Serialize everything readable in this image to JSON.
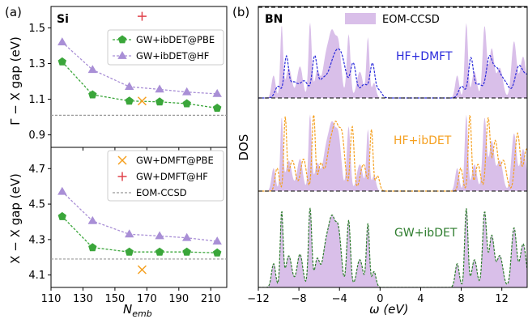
{
  "panel_labels": {
    "a": "(a)",
    "b": "(b)"
  },
  "chart_data": [
    {
      "type": "line",
      "panel": "(a) upper",
      "tag": "Si",
      "ylabel": "Γ − X gap (eV)",
      "xlim": [
        110,
        220
      ],
      "ylim": [
        0.83,
        1.62
      ],
      "yticks": [
        "0.9",
        "1.1",
        "1.3",
        "1.5"
      ],
      "series": [
        {
          "name": "GW+ibDET@PBE",
          "color": "#3aa63a",
          "marker": "pentagon",
          "x": [
            117,
            136,
            159,
            178,
            195,
            214
          ],
          "y": [
            1.31,
            1.125,
            1.09,
            1.085,
            1.075,
            1.05
          ]
        },
        {
          "name": "GW+ibDET@HF",
          "color": "#a98fd6",
          "marker": "triangle",
          "x": [
            117,
            136,
            159,
            178,
            195,
            214
          ],
          "y": [
            1.42,
            1.265,
            1.17,
            1.155,
            1.14,
            1.13
          ]
        }
      ],
      "points": [
        {
          "series": "GW+DMFT@PBE",
          "x": 167,
          "y": 1.09
        },
        {
          "series": "GW+DMFT@HF",
          "x": 167,
          "y": 1.565
        }
      ],
      "reference": {
        "name": "EOM-CCSD",
        "y": 1.01
      }
    },
    {
      "type": "line",
      "panel": "(a) lower",
      "xlabel": "N",
      "xlabel_sub": "emb",
      "ylabel": "X − X gap (eV)",
      "xlim": [
        110,
        220
      ],
      "ylim": [
        4.03,
        4.82
      ],
      "xticks": [
        "110",
        "130",
        "150",
        "170",
        "190",
        "210"
      ],
      "yticks": [
        "4.1",
        "4.3",
        "4.5",
        "4.7"
      ],
      "series": [
        {
          "name": "GW+ibDET@PBE",
          "color": "#3aa63a",
          "marker": "pentagon",
          "x": [
            117,
            136,
            159,
            178,
            195,
            214
          ],
          "y": [
            4.43,
            4.255,
            4.23,
            4.23,
            4.23,
            4.225
          ]
        },
        {
          "name": "GW+ibDET@HF",
          "color": "#a98fd6",
          "marker": "triangle",
          "x": [
            117,
            136,
            159,
            178,
            195,
            214
          ],
          "y": [
            4.57,
            4.405,
            4.33,
            4.32,
            4.31,
            4.29
          ]
        }
      ],
      "points": [
        {
          "series": "GW+DMFT@PBE",
          "x": 167,
          "y": 4.13
        },
        {
          "series": "GW+DMFT@HF",
          "x": 167,
          "y": 4.575
        }
      ],
      "reference": {
        "name": "EOM-CCSD",
        "y": 4.19
      }
    },
    {
      "type": "area",
      "panel": "(b)",
      "tag": "BN",
      "xlabel": "ω (eV)",
      "ylabel": "DOS",
      "xlim": [
        -12,
        14.5
      ],
      "xticks": [
        "−12",
        "−8",
        "−4",
        "0",
        "4",
        "8",
        "12"
      ],
      "reference": {
        "name": "EOM-CCSD",
        "color": "#d9bfe9",
        "peaks": [
          {
            "x": -10.5,
            "h": 0.3,
            "w": 0.2
          },
          {
            "x": -9.7,
            "h": 0.95,
            "w": 0.14
          },
          {
            "x": -9.0,
            "h": 0.4,
            "w": 0.3
          },
          {
            "x": -7.9,
            "h": 0.42,
            "w": 0.28
          },
          {
            "x": -6.9,
            "h": 1.0,
            "w": 0.16
          },
          {
            "x": -6.2,
            "h": 0.35,
            "w": 0.25
          },
          {
            "x": -5.3,
            "h": 0.55,
            "w": 0.35
          },
          {
            "x": -4.7,
            "h": 0.72,
            "w": 0.3
          },
          {
            "x": -4.1,
            "h": 0.68,
            "w": 0.28
          },
          {
            "x": -3.1,
            "h": 0.85,
            "w": 0.18
          },
          {
            "x": -2.0,
            "h": 0.35,
            "w": 0.3
          },
          {
            "x": -1.2,
            "h": 0.8,
            "w": 0.15
          },
          {
            "x": -0.6,
            "h": 0.2,
            "w": 0.2
          },
          {
            "x": 7.6,
            "h": 0.3,
            "w": 0.2
          },
          {
            "x": 8.5,
            "h": 1.0,
            "w": 0.16
          },
          {
            "x": 9.3,
            "h": 0.35,
            "w": 0.25
          },
          {
            "x": 10.3,
            "h": 0.95,
            "w": 0.2
          },
          {
            "x": 11.0,
            "h": 0.65,
            "w": 0.25
          },
          {
            "x": 11.8,
            "h": 0.4,
            "w": 0.3
          },
          {
            "x": 13.2,
            "h": 0.75,
            "w": 0.25
          },
          {
            "x": 14.1,
            "h": 0.55,
            "w": 0.3
          }
        ]
      },
      "series": [
        {
          "name": "HF+DMFT",
          "color": "#2a2adb",
          "shift": 0.45,
          "broad": 1.5,
          "damp": 0.72
        },
        {
          "name": "HF+ibDET",
          "color": "#f5a020",
          "shift": 0.35,
          "broad": 1.0,
          "damp": 0.9
        },
        {
          "name": "GW+ibDET",
          "color": "#2e7d2e",
          "shift": 0.0,
          "broad": 1.0,
          "damp": 1.0
        }
      ]
    }
  ]
}
